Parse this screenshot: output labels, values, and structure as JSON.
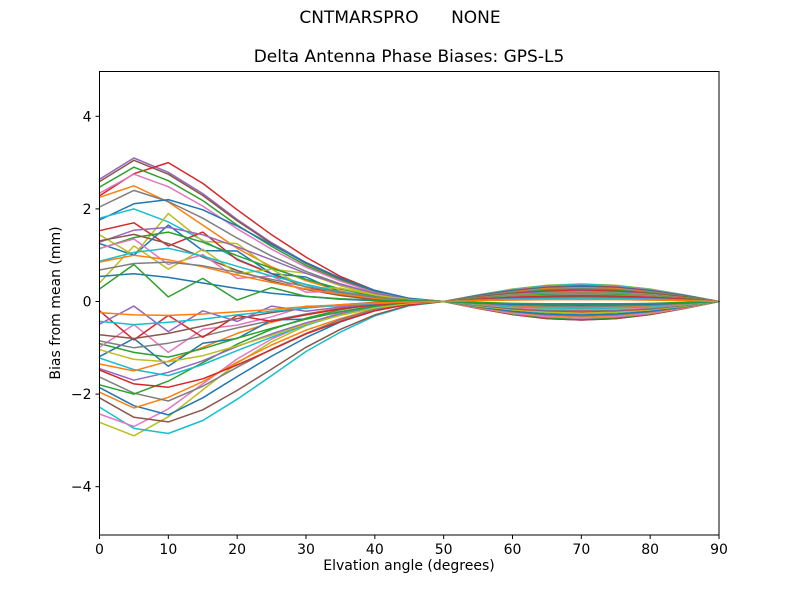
{
  "chart_data": {
    "type": "line",
    "suptitle": "CNTMARSPRO      NONE",
    "title": "Delta Antenna Phase Biases: GPS-L5",
    "xlabel": "Elvation angle (degrees)",
    "ylabel": "Bias from mean (mm)",
    "xlim": [
      0,
      90
    ],
    "ylim": [
      -5.05,
      5.0
    ],
    "xticks": [
      0,
      10,
      20,
      30,
      40,
      50,
      60,
      70,
      80,
      90
    ],
    "yticks": [
      -4,
      -2,
      0,
      2,
      4
    ],
    "grid": false,
    "legend": false,
    "line_width": 1.5,
    "axis_color": "#000000",
    "background_color": "#ffffff",
    "palette": [
      "#1f77b4",
      "#ff7f0e",
      "#2ca02c",
      "#d62728",
      "#9467bd",
      "#8c564b",
      "#e377c2",
      "#7f7f7f",
      "#bcbd22",
      "#17becf"
    ],
    "x": [
      0,
      5,
      10,
      15,
      20,
      25,
      30,
      35,
      40,
      45,
      50,
      55,
      60,
      65,
      70,
      75,
      80,
      85,
      90
    ],
    "series": [
      {
        "color": "#9467bd",
        "values": [
          2.64,
          3.1,
          2.79,
          2.33,
          1.77,
          1.27,
          0.84,
          0.5,
          0.22,
          0.06,
          0,
          -0.15,
          -0.28,
          -0.37,
          -0.4,
          -0.37,
          -0.28,
          -0.15,
          0
        ]
      },
      {
        "color": "#bcbd22",
        "values": [
          -2.61,
          -2.9,
          -2.49,
          -1.91,
          -1.33,
          -0.87,
          -0.52,
          -0.26,
          -0.09,
          0,
          0,
          0.14,
          0.27,
          0.35,
          0.38,
          0.35,
          0.27,
          0.14,
          0
        ]
      },
      {
        "color": "#8c564b",
        "values": [
          2.59,
          3.05,
          2.75,
          2.29,
          1.74,
          1.25,
          0.82,
          0.49,
          0.21,
          0.06,
          0,
          -0.15,
          -0.28,
          -0.37,
          -0.4,
          -0.37,
          -0.28,
          -0.15,
          0
        ]
      },
      {
        "color": "#17becf",
        "values": [
          -2.28,
          -2.74,
          -2.85,
          -2.57,
          -2.11,
          -1.6,
          -1.08,
          -0.66,
          -0.31,
          -0.09,
          0,
          0.14,
          0.26,
          0.34,
          0.37,
          0.34,
          0.26,
          0.14,
          0
        ]
      },
      {
        "color": "#d62728",
        "values": [
          2.28,
          2.76,
          3.0,
          2.55,
          1.98,
          1.44,
          0.96,
          0.54,
          0.24,
          0.06,
          0,
          -0.15,
          -0.28,
          -0.36,
          -0.39,
          -0.36,
          -0.28,
          -0.15,
          0
        ]
      },
      {
        "color": "#e377c2",
        "values": [
          -2.43,
          -2.7,
          -2.32,
          -1.78,
          -1.24,
          -0.81,
          -0.49,
          -0.24,
          -0.08,
          0,
          0,
          0.13,
          0.25,
          0.32,
          0.35,
          0.32,
          0.25,
          0.13,
          0
        ]
      },
      {
        "color": "#2ca02c",
        "values": [
          2.47,
          2.9,
          2.61,
          2.18,
          1.65,
          1.19,
          0.78,
          0.46,
          0.2,
          0.06,
          0,
          -0.14,
          -0.27,
          -0.35,
          -0.38,
          -0.35,
          -0.27,
          -0.14,
          0
        ]
      },
      {
        "color": "#8c564b",
        "values": [
          -2.08,
          -2.5,
          -2.6,
          -2.34,
          -1.92,
          -1.46,
          -0.99,
          -0.6,
          -0.29,
          -0.08,
          0,
          0.13,
          0.24,
          0.31,
          0.34,
          0.31,
          0.24,
          0.13,
          0
        ]
      },
      {
        "color": "#e377c2",
        "values": [
          2.34,
          2.75,
          2.48,
          2.06,
          1.57,
          1.13,
          0.74,
          0.44,
          0.19,
          0.06,
          0,
          -0.14,
          -0.26,
          -0.33,
          -0.36,
          -0.33,
          -0.26,
          -0.14,
          0
        ]
      },
      {
        "color": "#1f77b4",
        "values": [
          -1.86,
          -2.25,
          -2.45,
          -2.08,
          -1.62,
          -1.18,
          -0.78,
          -0.44,
          -0.2,
          -0.05,
          0,
          0.12,
          0.23,
          0.29,
          0.32,
          0.29,
          0.23,
          0.12,
          0
        ]
      },
      {
        "color": "#ff7f0e",
        "values": [
          2.25,
          2.5,
          2.15,
          1.65,
          1.15,
          0.75,
          0.45,
          0.23,
          0.08,
          0,
          0,
          -0.13,
          -0.23,
          -0.3,
          -0.33,
          -0.3,
          -0.23,
          -0.13,
          0
        ]
      },
      {
        "color": "#ff7f0e",
        "values": [
          -1.96,
          -2.3,
          -2.07,
          -1.73,
          -1.31,
          -0.94,
          -0.62,
          -0.37,
          -0.16,
          -0.05,
          0,
          0.11,
          0.21,
          0.28,
          0.3,
          0.28,
          0.21,
          0.11,
          0
        ]
      },
      {
        "color": "#7f7f7f",
        "values": [
          2.04,
          2.4,
          2.16,
          1.8,
          1.37,
          0.98,
          0.65,
          0.38,
          0.17,
          0.05,
          0,
          -0.12,
          -0.22,
          -0.29,
          -0.31,
          -0.29,
          -0.22,
          -0.12,
          0
        ]
      },
      {
        "color": "#7f7f7f",
        "values": [
          -1.63,
          -1.98,
          -2.15,
          -1.83,
          -1.42,
          -1.03,
          -0.69,
          -0.39,
          -0.17,
          -0.04,
          0,
          0.11,
          0.2,
          0.26,
          0.28,
          0.26,
          0.2,
          0.11,
          0
        ]
      },
      {
        "color": "#1f77b4",
        "values": [
          1.76,
          2.11,
          2.2,
          1.98,
          1.63,
          1.23,
          0.84,
          0.51,
          0.24,
          0.07,
          0,
          -0.11,
          -0.21,
          -0.27,
          -0.29,
          -0.27,
          -0.21,
          -0.11,
          0
        ]
      },
      {
        "color": "#2ca02c",
        "values": [
          -1.8,
          -2.0,
          -1.72,
          -1.32,
          -0.92,
          -0.6,
          -0.36,
          -0.18,
          -0.06,
          0,
          0,
          0.1,
          0.18,
          0.24,
          0.26,
          0.24,
          0.18,
          0.1,
          0
        ]
      },
      {
        "color": "#17becf",
        "values": [
          1.8,
          2.0,
          1.72,
          1.32,
          0.92,
          0.6,
          0.36,
          0.18,
          0.06,
          0,
          0,
          -0.1,
          -0.18,
          -0.24,
          -0.26,
          -0.24,
          -0.18,
          -0.1,
          0
        ]
      },
      {
        "color": "#d62728",
        "values": [
          -1.48,
          -1.78,
          -1.85,
          -1.67,
          -1.37,
          -1.04,
          -0.7,
          -0.43,
          -0.2,
          -0.06,
          0,
          0.09,
          0.17,
          0.22,
          0.24,
          0.22,
          0.17,
          0.09,
          0
        ]
      },
      {
        "color": "#bcbd22",
        "values": [
          1.44,
          1.0,
          1.9,
          1.3,
          1.25,
          0.7,
          0.61,
          0.34,
          0.15,
          0.04,
          0,
          -0.1,
          -0.18,
          -0.23,
          -0.25,
          -0.23,
          -0.18,
          -0.1,
          0
        ]
      },
      {
        "color": "#9467bd",
        "values": [
          -1.45,
          -1.7,
          -1.53,
          -1.28,
          -0.97,
          -0.7,
          -0.46,
          -0.27,
          -0.12,
          -0.03,
          0,
          0.08,
          0.16,
          0.2,
          0.22,
          0.2,
          0.16,
          0.08,
          0
        ]
      },
      {
        "color": "#d62728",
        "values": [
          1.53,
          1.7,
          1.2,
          1.5,
          0.9,
          0.6,
          0.31,
          0.15,
          0.05,
          0,
          0,
          -0.08,
          -0.16,
          -0.2,
          -0.22,
          -0.2,
          -0.16,
          -0.08,
          0
        ]
      },
      {
        "color": "#17becf",
        "values": [
          -1.22,
          -1.47,
          -1.6,
          -1.36,
          -1.06,
          -0.77,
          -0.51,
          -0.29,
          -0.13,
          -0.03,
          0,
          0.08,
          0.15,
          0.19,
          0.21,
          0.19,
          0.15,
          0.08,
          0
        ]
      },
      {
        "color": "#1f77b4",
        "values": [
          1.25,
          1.0,
          1.65,
          1.1,
          1.09,
          0.6,
          0.53,
          0.2,
          0.13,
          0.03,
          0,
          -0.08,
          -0.15,
          -0.19,
          -0.21,
          -0.19,
          -0.15,
          -0.08,
          0
        ]
      },
      {
        "color": "#ff7f0e",
        "values": [
          -1.35,
          -1.5,
          -1.29,
          -0.99,
          -0.69,
          -0.45,
          -0.27,
          -0.14,
          -0.05,
          0,
          0,
          0.08,
          0.14,
          0.18,
          0.2,
          0.18,
          0.14,
          0.08,
          0
        ]
      },
      {
        "color": "#9467bd",
        "values": [
          1.28,
          1.54,
          1.6,
          1.44,
          1.18,
          0.9,
          0.61,
          0.37,
          0.18,
          0.05,
          0,
          -0.08,
          -0.15,
          -0.19,
          -0.21,
          -0.19,
          -0.15,
          -0.08,
          0
        ]
      },
      {
        "color": "#1f77b4",
        "values": [
          -1.19,
          -0.8,
          -1.4,
          -0.9,
          -0.8,
          -0.4,
          -0.38,
          -0.22,
          -0.1,
          -0.03,
          0,
          0.07,
          0.13,
          0.17,
          0.18,
          0.17,
          0.13,
          0.07,
          0
        ]
      },
      {
        "color": "#2ca02c",
        "values": [
          1.14,
          1.38,
          1.5,
          1.28,
          0.99,
          0.72,
          0.48,
          0.27,
          0.12,
          0.03,
          0,
          -0.08,
          -0.14,
          -0.18,
          -0.2,
          -0.18,
          -0.14,
          -0.08,
          0
        ]
      },
      {
        "color": "#bcbd22",
        "values": [
          -1.04,
          -1.25,
          -1.3,
          -1.17,
          -0.96,
          -0.73,
          -0.49,
          -0.3,
          -0.14,
          -0.04,
          0,
          0.06,
          0.12,
          0.16,
          0.17,
          0.16,
          0.12,
          0.06,
          0
        ]
      },
      {
        "color": "#8c564b",
        "values": [
          1.31,
          1.45,
          1.25,
          0.96,
          0.67,
          0.44,
          0.26,
          0.13,
          0.04,
          0,
          0,
          -0.07,
          -0.13,
          -0.17,
          -0.19,
          -0.17,
          -0.13,
          -0.07,
          0
        ]
      },
      {
        "color": "#2ca02c",
        "values": [
          -0.91,
          -1.1,
          -1.2,
          -1.02,
          -0.79,
          -0.58,
          -0.38,
          -0.22,
          -0.1,
          -0.02,
          0,
          0.06,
          0.11,
          0.15,
          0.16,
          0.15,
          0.11,
          0.06,
          0
        ]
      },
      {
        "color": "#e377c2",
        "values": [
          1.15,
          1.35,
          0.8,
          1.01,
          0.5,
          0.55,
          0.2,
          0.22,
          0.09,
          0.03,
          0,
          -0.07,
          -0.13,
          -0.17,
          -0.18,
          -0.17,
          -0.13,
          -0.07,
          0
        ]
      },
      {
        "color": "#e377c2",
        "values": [
          -0.99,
          -0.5,
          -1.1,
          -0.6,
          -0.51,
          -0.33,
          -0.1,
          -0.1,
          -0.03,
          0,
          0,
          0.05,
          0.1,
          0.13,
          0.14,
          0.13,
          0.1,
          0.05,
          0
        ]
      },
      {
        "color": "#bcbd22",
        "values": [
          0.4,
          1.2,
          0.7,
          1.13,
          0.6,
          0.7,
          0.3,
          0.29,
          0.14,
          0.04,
          0,
          -0.06,
          -0.11,
          -0.15,
          -0.16,
          -0.15,
          -0.11,
          -0.06,
          0
        ]
      },
      {
        "color": "#7f7f7f",
        "values": [
          -0.85,
          -1.0,
          -0.9,
          -0.75,
          -0.57,
          -0.41,
          -0.27,
          -0.16,
          -0.07,
          -0.02,
          0,
          0.05,
          0.09,
          0.12,
          0.13,
          0.12,
          0.09,
          0.05,
          0
        ]
      },
      {
        "color": "#17becf",
        "values": [
          0.87,
          1.06,
          1.15,
          0.98,
          0.76,
          0.55,
          0.37,
          0.21,
          0.09,
          0.02,
          0,
          -0.06,
          -0.11,
          -0.14,
          -0.15,
          -0.14,
          -0.11,
          -0.06,
          0
        ]
      },
      {
        "color": "#d62728",
        "values": [
          -0.2,
          -0.83,
          -0.3,
          -0.77,
          -0.3,
          -0.43,
          -0.29,
          -0.16,
          -0.07,
          -0.02,
          0,
          0.05,
          0.09,
          0.11,
          0.12,
          0.11,
          0.09,
          0.05,
          0
        ]
      },
      {
        "color": "#ff7f0e",
        "values": [
          0.85,
          1.0,
          0.9,
          0.75,
          0.57,
          0.41,
          0.27,
          0.16,
          0.07,
          0.02,
          0,
          -0.05,
          -0.09,
          -0.12,
          -0.13,
          -0.12,
          -0.09,
          -0.05,
          0
        ]
      },
      {
        "color": "#8c564b",
        "values": [
          -0.72,
          -0.8,
          -0.69,
          -0.53,
          -0.37,
          -0.24,
          -0.14,
          -0.07,
          -0.02,
          0,
          0,
          0.04,
          0.07,
          0.09,
          0.1,
          0.09,
          0.07,
          0.04,
          0
        ]
      },
      {
        "color": "#7f7f7f",
        "values": [
          0.68,
          0.82,
          0.85,
          0.77,
          0.63,
          0.48,
          0.32,
          0.2,
          0.09,
          0.03,
          0,
          -0.04,
          -0.08,
          -0.1,
          -0.11,
          -0.1,
          -0.08,
          -0.04,
          0
        ]
      },
      {
        "color": "#9467bd",
        "values": [
          -0.49,
          -0.1,
          -0.65,
          -0.2,
          -0.43,
          -0.1,
          -0.21,
          -0.12,
          -0.05,
          -0.01,
          0,
          0.03,
          0.06,
          0.07,
          0.08,
          0.07,
          0.06,
          0.03,
          0
        ]
      },
      {
        "color": "#1f77b4",
        "values": [
          0.54,
          0.6,
          0.52,
          0.4,
          0.28,
          0.18,
          0.11,
          0.05,
          0.02,
          0,
          0,
          -0.03,
          -0.06,
          -0.07,
          -0.08,
          -0.07,
          -0.06,
          -0.03,
          0
        ]
      },
      {
        "color": "#17becf",
        "values": [
          -0.43,
          -0.5,
          -0.45,
          -0.38,
          -0.29,
          -0.21,
          -0.14,
          -0.08,
          -0.04,
          -0.01,
          0,
          0.03,
          0.05,
          0.06,
          0.07,
          0.06,
          0.05,
          0.03,
          0
        ]
      },
      {
        "color": "#2ca02c",
        "values": [
          0.27,
          0.8,
          0.1,
          0.5,
          0.03,
          0.3,
          0.11,
          0.06,
          0.03,
          0.01,
          0,
          -0.02,
          -0.04,
          -0.05,
          -0.05,
          -0.05,
          -0.04,
          -0.02,
          0
        ]
      },
      {
        "color": "#ff7f0e",
        "values": [
          -0.24,
          -0.29,
          -0.3,
          -0.27,
          -0.22,
          -0.17,
          -0.11,
          -0.07,
          -0.03,
          -0.01,
          0,
          0.02,
          0.03,
          0.04,
          0.04,
          0.04,
          0.03,
          0.02,
          0
        ]
      }
    ]
  }
}
